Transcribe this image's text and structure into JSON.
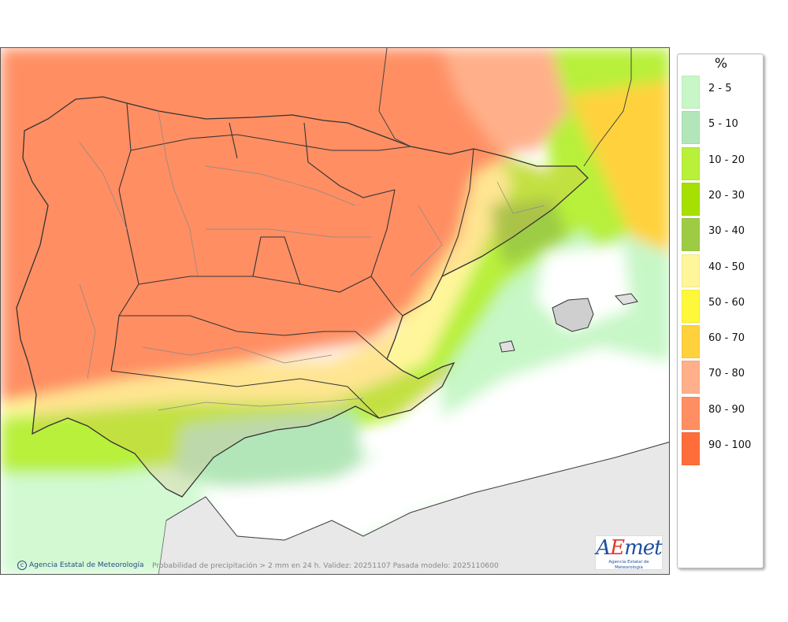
{
  "legend": {
    "title": "%",
    "items": [
      {
        "label": "2 - 5",
        "color": "#c7f7c7"
      },
      {
        "label": "5 - 10",
        "color": "#b2e6b8"
      },
      {
        "label": "10 - 20",
        "color": "#b8f03a"
      },
      {
        "label": "20 - 30",
        "color": "#a6e000"
      },
      {
        "label": "30 - 40",
        "color": "#9dcc44"
      },
      {
        "label": "40 - 50",
        "color": "#fff59a"
      },
      {
        "label": "50 - 60",
        "color": "#fff73a"
      },
      {
        "label": "60 - 70",
        "color": "#ffd23d"
      },
      {
        "label": "70 - 80",
        "color": "#ffb08a"
      },
      {
        "label": "80 - 90",
        "color": "#ff8f63"
      },
      {
        "label": "90 - 100",
        "color": "#ff6d3a"
      }
    ]
  },
  "map": {
    "caption": "Probabilidad de precipitación > 2 mm en 24 h. Validez: 20251107 Pasada modelo: 2025110600",
    "copyright": "Agencia Estatal de Meteorología",
    "logo_text": "AEmet",
    "logo_subtext": "Agencia Estatal de Meteorología"
  }
}
